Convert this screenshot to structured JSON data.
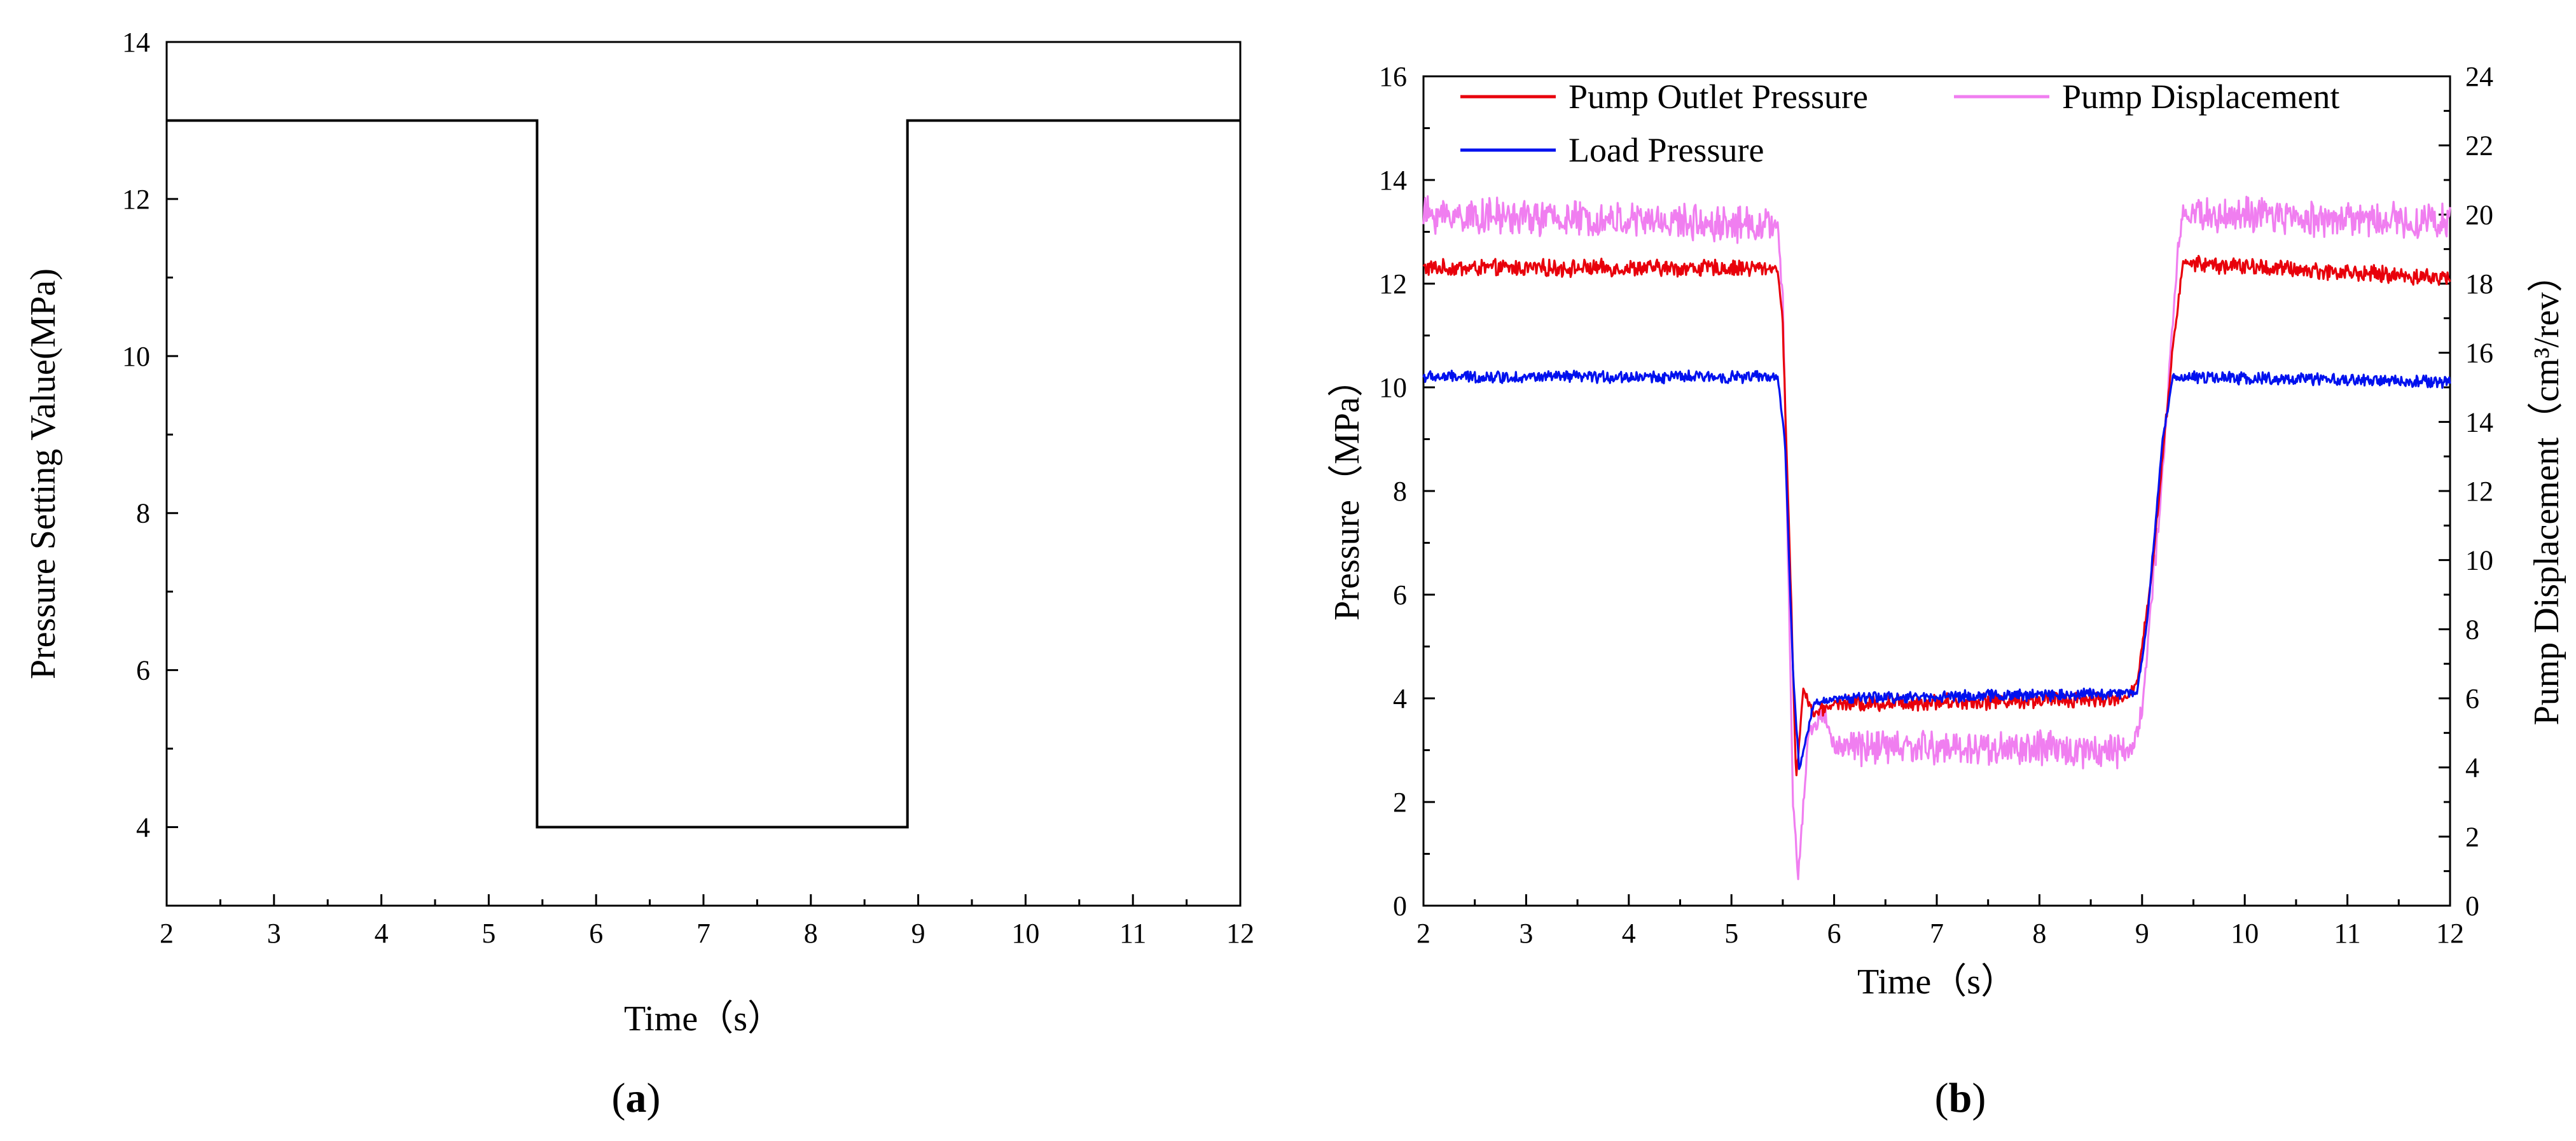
{
  "chart_data": [
    {
      "id": "a",
      "type": "line",
      "panel_label": "(a)",
      "panel_letter": "a",
      "title": "",
      "xlabel": "Time（s）",
      "ylabel": "Pressure Setting Value(MPa)",
      "xlim": [
        2,
        12
      ],
      "ylim": [
        3,
        14
      ],
      "xticks": [
        2,
        3,
        4,
        5,
        6,
        7,
        8,
        9,
        10,
        11,
        12
      ],
      "yticks": [
        4,
        6,
        8,
        10,
        12,
        14
      ],
      "grid": false,
      "series": [
        {
          "name": "Pressure Setting Value",
          "color": "#000000",
          "x": [
            2,
            5.45,
            5.45,
            8.9,
            8.9,
            12
          ],
          "y": [
            13,
            13,
            4,
            4,
            13,
            13
          ]
        }
      ]
    },
    {
      "id": "b",
      "type": "line",
      "panel_label": "(b)",
      "panel_letter": "b",
      "title": "",
      "xlabel": "Time（s）",
      "ylabel": "Pressure（MPa）",
      "ylabel_right": "Pump Displacement（cm³/rev）",
      "xlim": [
        2,
        12
      ],
      "ylim": [
        0,
        16
      ],
      "ylim_right": [
        0,
        24
      ],
      "xticks": [
        2,
        3,
        4,
        5,
        6,
        7,
        8,
        9,
        10,
        11,
        12
      ],
      "yticks": [
        0,
        2,
        4,
        6,
        8,
        10,
        12,
        14,
        16
      ],
      "yticks_right": [
        0,
        2,
        4,
        6,
        8,
        10,
        12,
        14,
        16,
        18,
        20,
        22,
        24
      ],
      "grid": false,
      "legend_position": "top",
      "series": [
        {
          "name": "Pump Outlet Pressure",
          "color": "#e8000b",
          "axis": "left",
          "noise": 0.14,
          "x": [
            2,
            5.45,
            5.5,
            5.58,
            5.63,
            5.7,
            5.8,
            6.0,
            8.85,
            8.95,
            9.1,
            9.3,
            9.4,
            12
          ],
          "y": [
            12.3,
            12.3,
            11.2,
            6.0,
            2.4,
            4.2,
            3.7,
            3.9,
            4.0,
            4.3,
            6.5,
            10.8,
            12.4,
            12.1
          ]
        },
        {
          "name": "Pump Displacement",
          "color": "#f07ef0",
          "axis": "right",
          "noise": 0.45,
          "x": [
            2,
            5.45,
            5.5,
            5.6,
            5.65,
            5.75,
            5.9,
            6.0,
            8.9,
            9.0,
            9.2,
            9.35,
            9.4,
            12
          ],
          "y": [
            20.0,
            19.7,
            17.5,
            3.0,
            0.8,
            5.0,
            5.6,
            4.6,
            4.5,
            5.7,
            12.5,
            19.0,
            20.0,
            19.8
          ]
        },
        {
          "name": "Load Pressure",
          "color": "#0011ee",
          "axis": "left",
          "noise": 0.1,
          "x": [
            2,
            5.45,
            5.52,
            5.6,
            5.66,
            5.8,
            6.0,
            8.95,
            9.05,
            9.2,
            9.3,
            12
          ],
          "y": [
            10.2,
            10.2,
            9.0,
            4.5,
            2.6,
            3.9,
            4.0,
            4.1,
            5.5,
            9.0,
            10.2,
            10.1
          ]
        }
      ]
    }
  ]
}
